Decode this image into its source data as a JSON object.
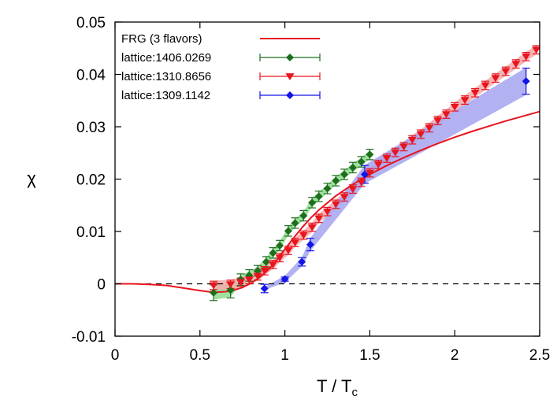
{
  "chart_data": {
    "type": "line",
    "title": "",
    "xlabel": {
      "main": "T / T",
      "sub": "c"
    },
    "ylabel": "χ",
    "xlim": [
      0,
      2.5
    ],
    "ylim": [
      -0.01,
      0.05
    ],
    "xticks": [
      0,
      0.5,
      1,
      1.5,
      2,
      2.5
    ],
    "xtick_labels": [
      "0",
      "0.5",
      "1",
      "1.5",
      "2",
      "2.5"
    ],
    "yticks": [
      -0.01,
      0,
      0.01,
      0.02,
      0.03,
      0.04,
      0.05
    ],
    "ytick_labels": [
      "-0.01",
      "0",
      "0.01",
      "0.02",
      "0.03",
      "0.04",
      "0.05"
    ],
    "grid": false,
    "legend_position": "top-left",
    "reference_line": {
      "y": 0,
      "style": "dashed"
    },
    "series": [
      {
        "name": "FRG (3 flavors)",
        "kind": "line",
        "color": "#e8141e",
        "x": [
          0,
          0.1,
          0.2,
          0.3,
          0.4,
          0.5,
          0.55,
          0.6,
          0.65,
          0.7,
          0.75,
          0.8,
          0.85,
          0.9,
          0.95,
          1.0,
          1.05,
          1.1,
          1.15,
          1.2,
          1.3,
          1.4,
          1.5,
          1.6,
          1.7,
          1.8,
          1.9,
          2.0,
          2.1,
          2.2,
          2.3,
          2.4,
          2.5
        ],
        "y": [
          0,
          0,
          -0.0001,
          -0.0003,
          -0.0008,
          -0.0013,
          -0.0015,
          -0.0016,
          -0.0015,
          -0.0012,
          -0.0007,
          0.0001,
          0.0012,
          0.0026,
          0.0044,
          0.0066,
          0.0087,
          0.0107,
          0.0125,
          0.0141,
          0.0168,
          0.019,
          0.0209,
          0.0226,
          0.0241,
          0.0255,
          0.0268,
          0.028,
          0.0291,
          0.0301,
          0.0311,
          0.032,
          0.0329
        ]
      },
      {
        "name": "lattice:1406.0269",
        "kind": "points",
        "color": "#1e6e1e",
        "band_color": "#8fdc8f",
        "marker": "diamond",
        "x": [
          0.58,
          0.68,
          0.74,
          0.79,
          0.84,
          0.89,
          0.93,
          0.97,
          1.02,
          1.06,
          1.11,
          1.16,
          1.2,
          1.25,
          1.3,
          1.35,
          1.4,
          1.45,
          1.5
        ],
        "y": [
          -0.0017,
          -0.0012,
          0.0008,
          0.0016,
          0.0025,
          0.0042,
          0.0059,
          0.0073,
          0.0101,
          0.0116,
          0.013,
          0.0155,
          0.0167,
          0.0182,
          0.0197,
          0.0209,
          0.0222,
          0.0233,
          0.0247
        ],
        "err": [
          0.0015,
          0.0015,
          0.0011,
          0.0011,
          0.001,
          0.001,
          0.001,
          0.001,
          0.001,
          0.001,
          0.001,
          0.001,
          0.001,
          0.001,
          0.001,
          0.001,
          0.001,
          0.001,
          0.001
        ]
      },
      {
        "name": "lattice:1310.8656",
        "kind": "points",
        "color": "#e8141e",
        "band_color": "#f4a9a9",
        "marker": "triangle-down",
        "x": [
          0.58,
          0.68,
          0.74,
          0.79,
          0.84,
          0.88,
          0.93,
          0.97,
          1.02,
          1.06,
          1.11,
          1.16,
          1.2,
          1.25,
          1.3,
          1.35,
          1.4,
          1.45,
          1.5,
          1.55,
          1.6,
          1.65,
          1.7,
          1.75,
          1.8,
          1.85,
          1.9,
          1.95,
          2.0,
          2.06,
          2.12,
          2.18,
          2.24,
          2.3,
          2.36,
          2.42,
          2.48
        ],
        "y": [
          -0.0003,
          -0.0001,
          0.0003,
          0.0008,
          0.0015,
          0.0025,
          0.0037,
          0.005,
          0.0064,
          0.0079,
          0.0093,
          0.0108,
          0.0125,
          0.0138,
          0.0152,
          0.0166,
          0.0181,
          0.0194,
          0.0212,
          0.0228,
          0.024,
          0.0251,
          0.0262,
          0.0275,
          0.0286,
          0.0298,
          0.0312,
          0.0324,
          0.0338,
          0.0351,
          0.0365,
          0.0379,
          0.0393,
          0.0406,
          0.042,
          0.0434,
          0.0447
        ],
        "err": [
          0.0008,
          0.0008,
          0.0008,
          0.0008,
          0.0008,
          0.0008,
          0.0008,
          0.0008,
          0.0008,
          0.0008,
          0.0008,
          0.0008,
          0.0008,
          0.0008,
          0.0008,
          0.0008,
          0.0008,
          0.0008,
          0.0008,
          0.0008,
          0.0008,
          0.0008,
          0.0008,
          0.0008,
          0.0008,
          0.0008,
          0.0008,
          0.0008,
          0.0008,
          0.0008,
          0.0008,
          0.0008,
          0.0008,
          0.0008,
          0.0008,
          0.0008,
          0.0008
        ]
      },
      {
        "name": "lattice:1309.1142",
        "kind": "points",
        "color": "#1414e6",
        "band_color": "#a5a5f0",
        "marker": "diamond",
        "x": [
          0.88,
          1.0,
          1.1,
          1.15,
          1.47,
          2.42
        ],
        "y": [
          -0.0009,
          0.0009,
          0.0042,
          0.0075,
          0.0209,
          0.0387
        ],
        "err": [
          0.0008,
          0.0004,
          0.0008,
          0.0012,
          0.0017,
          0.0025
        ]
      }
    ]
  }
}
